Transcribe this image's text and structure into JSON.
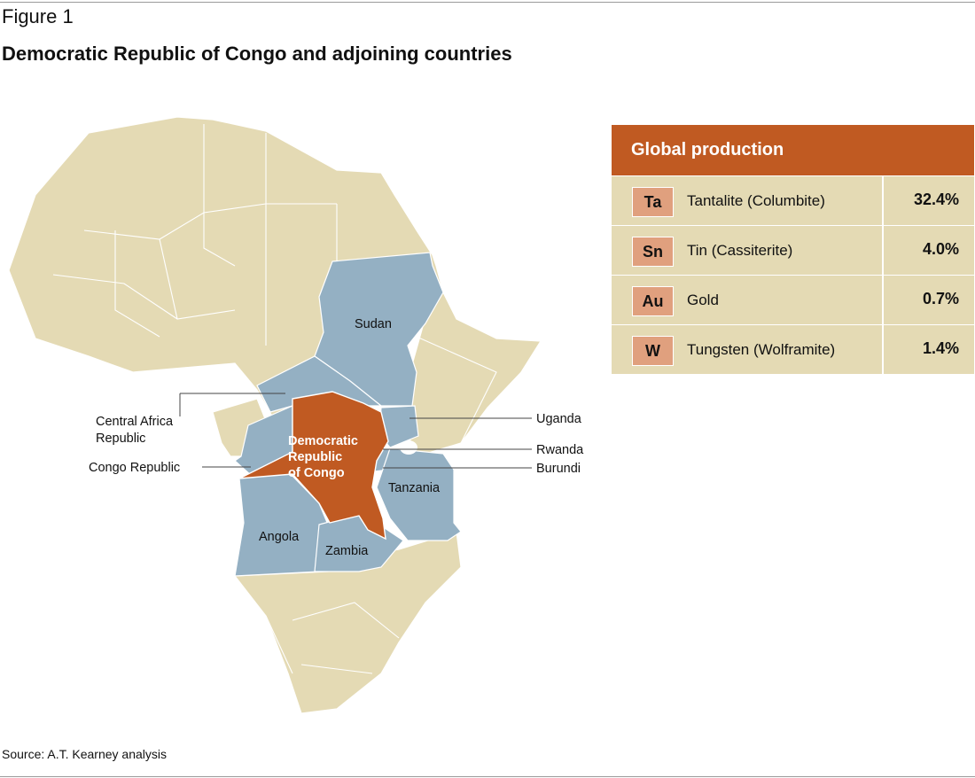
{
  "figure": {
    "label": "Figure 1",
    "title": "Democratic Republic of Congo and adjoining countries",
    "source": "Source: A.T. Kearney analysis"
  },
  "map": {
    "colors": {
      "land": "#e4dab4",
      "highlight": "#c05a22",
      "neighbor": "#94b0c3",
      "border": "#ffffff"
    },
    "labels": {
      "sudan": "Sudan",
      "central_africa_line1": "Central Africa",
      "central_africa_line2": "Republic",
      "congo_republic": "Congo Republic",
      "drc_line1": "Democratic",
      "drc_line2": "Republic",
      "drc_line3": "of Congo",
      "uganda": "Uganda",
      "rwanda": "Rwanda",
      "burundi": "Burundi",
      "tanzania": "Tanzania",
      "angola": "Angola",
      "zambia": "Zambia"
    }
  },
  "production": {
    "header": "Global production",
    "rows": [
      {
        "symbol": "Ta",
        "name": "Tantalite (Columbite)",
        "share": "32.4%"
      },
      {
        "symbol": "Sn",
        "name": "Tin (Cassiterite)",
        "share": "4.0%"
      },
      {
        "symbol": "Au",
        "name": "Gold",
        "share": "0.7%"
      },
      {
        "symbol": "W",
        "name": "Tungsten (Wolframite)",
        "share": "1.4%"
      }
    ]
  }
}
